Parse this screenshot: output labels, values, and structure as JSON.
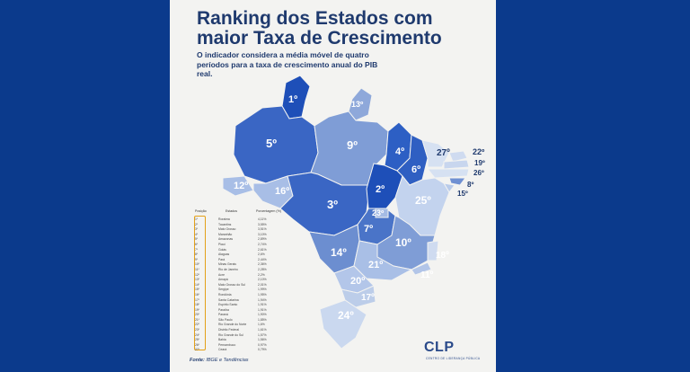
{
  "title": "Ranking dos Estados com maior Taxa de Crescimento",
  "subtitle": "O indicador considera a média móvel de quatro períodos para a taxa de crescimento anual do PIB real.",
  "legend": {
    "headers": [
      "Posição",
      "Estados",
      "Porcentagem (%)"
    ],
    "rows": [
      {
        "pos": "1º",
        "estado": "Roraima",
        "pct": "4,11%"
      },
      {
        "pos": "2º",
        "estado": "Tocantins",
        "pct": "3,55%"
      },
      {
        "pos": "3º",
        "estado": "Mato Grosso",
        "pct": "3,51%"
      },
      {
        "pos": "4º",
        "estado": "Maranhão",
        "pct": "3,10%"
      },
      {
        "pos": "5º",
        "estado": "Amazonas",
        "pct": "2,89%"
      },
      {
        "pos": "6º",
        "estado": "Piauí",
        "pct": "2,74%"
      },
      {
        "pos": "7º",
        "estado": "Goiás",
        "pct": "2,61%"
      },
      {
        "pos": "8º",
        "estado": "Alagoas",
        "pct": "2,6%"
      },
      {
        "pos": "9º",
        "estado": "Pará",
        "pct": "2,44%"
      },
      {
        "pos": "10º",
        "estado": "Minas Gerais",
        "pct": "2,36%"
      },
      {
        "pos": "11º",
        "estado": "Rio de Janeiro",
        "pct": "2,28%"
      },
      {
        "pos": "12º",
        "estado": "Acre",
        "pct": "2,2%"
      },
      {
        "pos": "13º",
        "estado": "Amapá",
        "pct": "2,10%"
      },
      {
        "pos": "14º",
        "estado": "Mato Grosso do Sul",
        "pct": "2,01%"
      },
      {
        "pos": "15º",
        "estado": "Sergipe",
        "pct": "1,99%"
      },
      {
        "pos": "16º",
        "estado": "Rondônia",
        "pct": "1,95%"
      },
      {
        "pos": "17º",
        "estado": "Santa Catarina",
        "pct": "1,94%"
      },
      {
        "pos": "18º",
        "estado": "Espírito Santo",
        "pct": "1,91%"
      },
      {
        "pos": "19º",
        "estado": "Paraíba",
        "pct": "1,91%"
      },
      {
        "pos": "20º",
        "estado": "Paraná",
        "pct": "1,90%"
      },
      {
        "pos": "21º",
        "estado": "São Paulo",
        "pct": "1,85%"
      },
      {
        "pos": "22º",
        "estado": "Rio Grande do Norte",
        "pct": "1,6%"
      },
      {
        "pos": "23º",
        "estado": "Distrito Federal",
        "pct": "1,61%"
      },
      {
        "pos": "24º",
        "estado": "Rio Grande do Sul",
        "pct": "1,57%"
      },
      {
        "pos": "25º",
        "estado": "Bahia",
        "pct": "1,56%"
      },
      {
        "pos": "26º",
        "estado": "Pernambuco",
        "pct": "0,97%"
      },
      {
        "pos": "27º",
        "estado": "Ceará",
        "pct": "0,79%"
      }
    ]
  },
  "map_labels": {
    "RR": "1º",
    "AP": "13º",
    "AM": "5º",
    "PA": "9º",
    "MA": "4º",
    "CE": "27º",
    "RN": "22º",
    "PB": "19º",
    "PE": "26º",
    "AL": "8º",
    "SE": "15º",
    "PI": "6º",
    "TO": "2º",
    "BA": "25º",
    "AC": "12º",
    "RO": "16º",
    "MT": "3º",
    "DF": "23º",
    "GO": "7º",
    "MS": "14º",
    "MG": "10º",
    "ES": "18º",
    "RJ": "11º",
    "SP": "21º",
    "PR": "20º",
    "SC": "17º",
    "RS": "24º"
  },
  "footer": {
    "fonte_label": "Fonte:",
    "fonte_text": "IBGE e Tendências"
  },
  "logo": {
    "mark": "CLP",
    "tagline": "CENTRO DE LIDERANÇA PÚBLICA"
  },
  "colors": {
    "background": "#0b3a8c",
    "poster": "#f3f3f1",
    "rank_top": "#2d5fc4",
    "rank_mid": "#7f9dd6",
    "rank_low": "#bccde9",
    "rank_bottom": "#dbe4f3",
    "legend_accent": "#e3a019"
  }
}
